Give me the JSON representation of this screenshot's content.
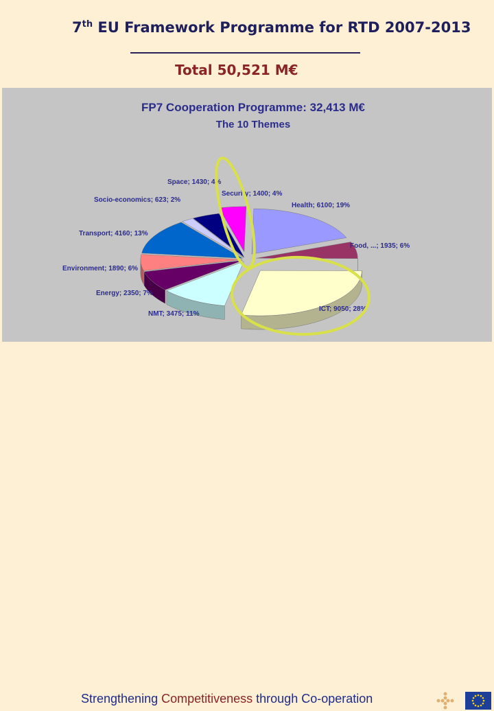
{
  "header": {
    "title_prefix": "7",
    "title_sup": "th",
    "title_rest": " EU Framework Programme for RTD 2007-2013",
    "total": "Total 50,521 M€"
  },
  "footer": {
    "tagline_a": "Strengthening ",
    "tagline_b": "Competitiveness",
    "tagline_c": " through Co-operation"
  },
  "chart_data": {
    "type": "pie",
    "title": "FP7 Cooperation Programme: 32,413 M€",
    "subtitle": "The 10 Themes",
    "slices": [
      {
        "name": "Health",
        "value": 6100,
        "percent": 19,
        "label": "Health; 6100; 19%",
        "color": "#9999ff"
      },
      {
        "name": "Food, ...",
        "value": 1935,
        "percent": 6,
        "label": "Food, ...; 1935; 6%",
        "color": "#993366"
      },
      {
        "name": "ICT",
        "value": 9050,
        "percent": 28,
        "label": "ICT; 9050; 28%",
        "color": "#ffffcc"
      },
      {
        "name": "NMT",
        "value": 3475,
        "percent": 11,
        "label": "NMT; 3475; 11%",
        "color": "#ccffff"
      },
      {
        "name": "Energy",
        "value": 2350,
        "percent": 7,
        "label": "Energy; 2350; 7%",
        "color": "#660066"
      },
      {
        "name": "Environment",
        "value": 1890,
        "percent": 6,
        "label": "Environment; 1890; 6%",
        "color": "#ff8080"
      },
      {
        "name": "Transport",
        "value": 4160,
        "percent": 13,
        "label": "Transport; 4160; 13%",
        "color": "#0066cc"
      },
      {
        "name": "Socio-economics",
        "value": 623,
        "percent": 2,
        "label": "Socio-economics; 623; 2%",
        "color": "#ccccff"
      },
      {
        "name": "Space",
        "value": 1430,
        "percent": 4,
        "label": "Space; 1430; 4%",
        "color": "#000080"
      },
      {
        "name": "Security",
        "value": 1400,
        "percent": 4,
        "label": "Security; 1400; 4%",
        "color": "#ff00ff"
      }
    ],
    "highlighted": [
      "Security",
      "ICT"
    ],
    "highlight_color": "#d8e04a"
  }
}
